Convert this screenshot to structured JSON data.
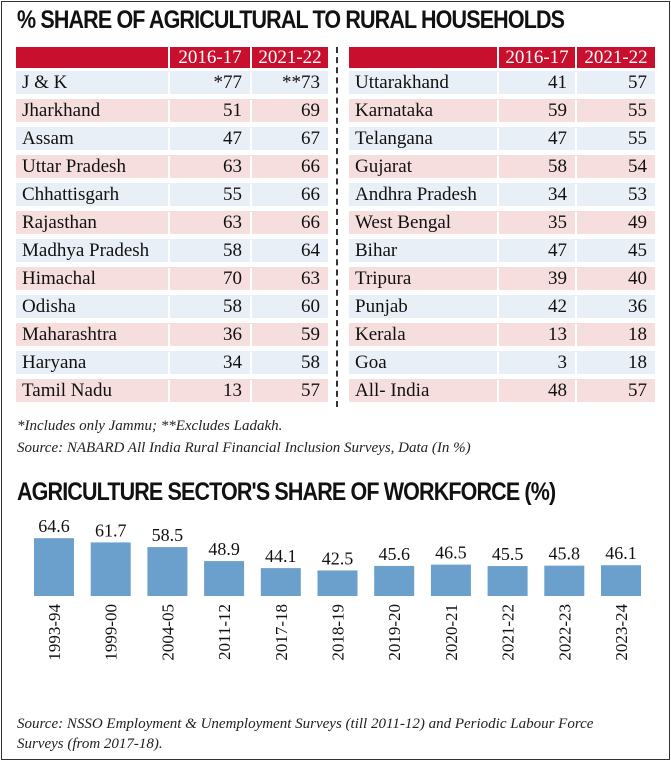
{
  "table_title": "% SHARE OF AGRICULTURAL TO RURAL HOUSEHOLDS",
  "columns": [
    "",
    "2016-17",
    "2021-22"
  ],
  "left_rows": [
    [
      "J & K",
      "*77",
      "**73"
    ],
    [
      "Jharkhand",
      "51",
      "69"
    ],
    [
      "Assam",
      "47",
      "67"
    ],
    [
      "Uttar Pradesh",
      "63",
      "66"
    ],
    [
      "Chhattisgarh",
      "55",
      "66"
    ],
    [
      "Rajasthan",
      "63",
      "66"
    ],
    [
      "Madhya Pradesh",
      "58",
      "64"
    ],
    [
      "Himachal",
      "70",
      "63"
    ],
    [
      "Odisha",
      "58",
      "60"
    ],
    [
      "Maharashtra",
      "36",
      "59"
    ],
    [
      "Haryana",
      "34",
      "58"
    ],
    [
      "Tamil Nadu",
      "13",
      "57"
    ]
  ],
  "right_rows": [
    [
      "Uttarakhand",
      "41",
      "57"
    ],
    [
      "Karnataka",
      "59",
      "55"
    ],
    [
      "Telangana",
      "47",
      "55"
    ],
    [
      "Gujarat",
      "58",
      "54"
    ],
    [
      "Andhra Pradesh",
      "34",
      "53"
    ],
    [
      "West Bengal",
      "35",
      "49"
    ],
    [
      "Bihar",
      "47",
      "45"
    ],
    [
      "Tripura",
      "39",
      "40"
    ],
    [
      "Punjab",
      "42",
      "36"
    ],
    [
      "Kerala",
      "13",
      "18"
    ],
    [
      "Goa",
      "3",
      "18"
    ],
    [
      "All- India",
      "48",
      "57"
    ]
  ],
  "footnote": "*Includes only Jammu; **Excludes Ladakh.",
  "table_source": "Source: NABARD All India Rural Financial Inclusion Surveys, Data (In %)",
  "colors": {
    "header": "#c8102e",
    "row_odd": "#e9eff6",
    "row_even": "#f6dede",
    "bar": "#6b9fcc"
  },
  "chart_data": {
    "type": "bar",
    "title": "AGRICULTURE SECTOR'S SHARE OF WORKFORCE (%)",
    "categories": [
      "1993-94",
      "1999-00",
      "2004-05",
      "2011-12",
      "2017-18",
      "2018-19",
      "2019-20",
      "2020-21",
      "2021-22",
      "2022-23",
      "2023-24"
    ],
    "values": [
      64.6,
      61.7,
      58.5,
      48.9,
      44.1,
      42.5,
      45.6,
      46.5,
      45.5,
      45.8,
      46.1
    ],
    "value_labels": [
      "64.6",
      "61.7",
      "58.5",
      "48.9",
      "44.1",
      "42.5",
      "45.6",
      "46.5",
      "45.5",
      "45.8",
      "46.1"
    ],
    "xlabel": "",
    "ylabel": ""
  },
  "chart_source": [
    "Source: NSSO Employment & Unemployment Surveys (till 2011-12) and Periodic Labour Force",
    "Surveys (from 2017-18)."
  ]
}
